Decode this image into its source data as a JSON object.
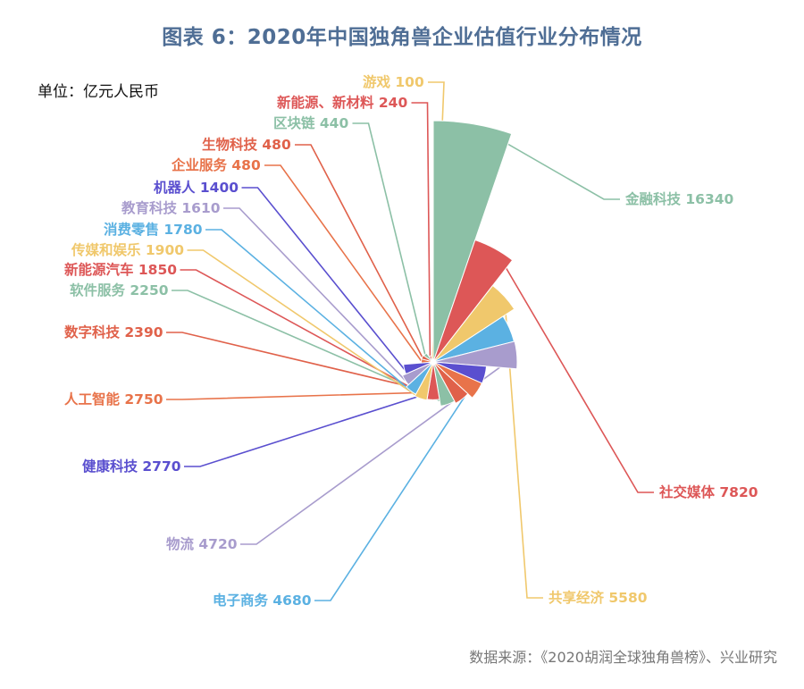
{
  "title": "图表 6：2020年中国独角兽企业估值行业分布情况",
  "unit": "单位：亿元人民币",
  "source": "数据来源：《2020胡润全球独角兽榜》、兴业研究",
  "chart_data": {
    "type": "pie",
    "subtype": "rose",
    "title": "图表 6：2020年中国独角兽企业估值行业分布情况",
    "unit": "亿元人民币",
    "series": [
      {
        "name": "金融科技",
        "value": 16340,
        "color": "#8cc0a6"
      },
      {
        "name": "社交媒体",
        "value": 7820,
        "color": "#dd5757"
      },
      {
        "name": "共享经济",
        "value": 5580,
        "color": "#f0c86c"
      },
      {
        "name": "电子商务",
        "value": 4680,
        "color": "#5bb1e2"
      },
      {
        "name": "物流",
        "value": 4720,
        "color": "#a89ccd"
      },
      {
        "name": "健康科技",
        "value": 2770,
        "color": "#5a4fcf"
      },
      {
        "name": "人工智能",
        "value": 2750,
        "color": "#e8734a"
      },
      {
        "name": "数字科技",
        "value": 2390,
        "color": "#e0614a"
      },
      {
        "name": "软件服务",
        "value": 2250,
        "color": "#8cc0a6"
      },
      {
        "name": "新能源汽车",
        "value": 1850,
        "color": "#dd5757"
      },
      {
        "name": "传媒和娱乐",
        "value": 1900,
        "color": "#f0c86c"
      },
      {
        "name": "消费零售",
        "value": 1780,
        "color": "#5bb1e2"
      },
      {
        "name": "教育科技",
        "value": 1610,
        "color": "#a89ccd"
      },
      {
        "name": "机器人",
        "value": 1400,
        "color": "#5a4fcf"
      },
      {
        "name": "企业服务",
        "value": 480,
        "color": "#e8734a"
      },
      {
        "name": "生物科技",
        "value": 480,
        "color": "#e0614a"
      },
      {
        "name": "区块链",
        "value": 440,
        "color": "#8cc0a6"
      },
      {
        "name": "新能源、新材料",
        "value": 240,
        "color": "#dd5757"
      },
      {
        "name": "游戏",
        "value": 100,
        "color": "#f0c86c"
      }
    ]
  }
}
